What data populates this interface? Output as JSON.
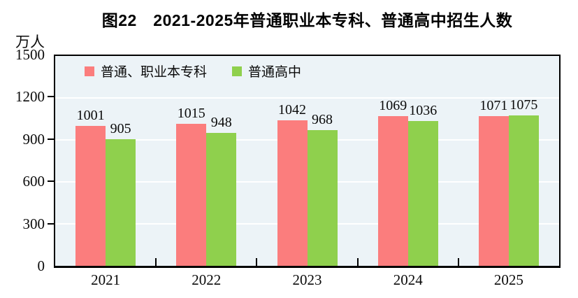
{
  "figure": {
    "title": "图22　2021-2025年普通职业本专科、普通高中招生人数",
    "y_unit": "万人"
  },
  "chart_data": {
    "type": "bar",
    "title": "图22　2021-2025年普通职业本专科、普通高中招生人数",
    "ylabel": "万人",
    "xlabel": "",
    "categories": [
      "2021",
      "2022",
      "2023",
      "2024",
      "2025"
    ],
    "series": [
      {
        "name": "普通、职业本专科",
        "color": "#FB7D7D",
        "values": [
          1001,
          1015,
          1042,
          1069,
          1071
        ]
      },
      {
        "name": "普通高中",
        "color": "#8FD04D",
        "values": [
          905,
          948,
          968,
          1036,
          1075
        ]
      }
    ],
    "ylim": [
      0,
      1500
    ],
    "yticks": [
      0,
      300,
      600,
      900,
      1200,
      1500
    ],
    "grid": true,
    "gridline_color": "#FFFFFF",
    "plot_background": "#ECF3F7",
    "frame_color": "#000000",
    "value_labels_shown": true,
    "legend_position": "top-left-inside"
  }
}
